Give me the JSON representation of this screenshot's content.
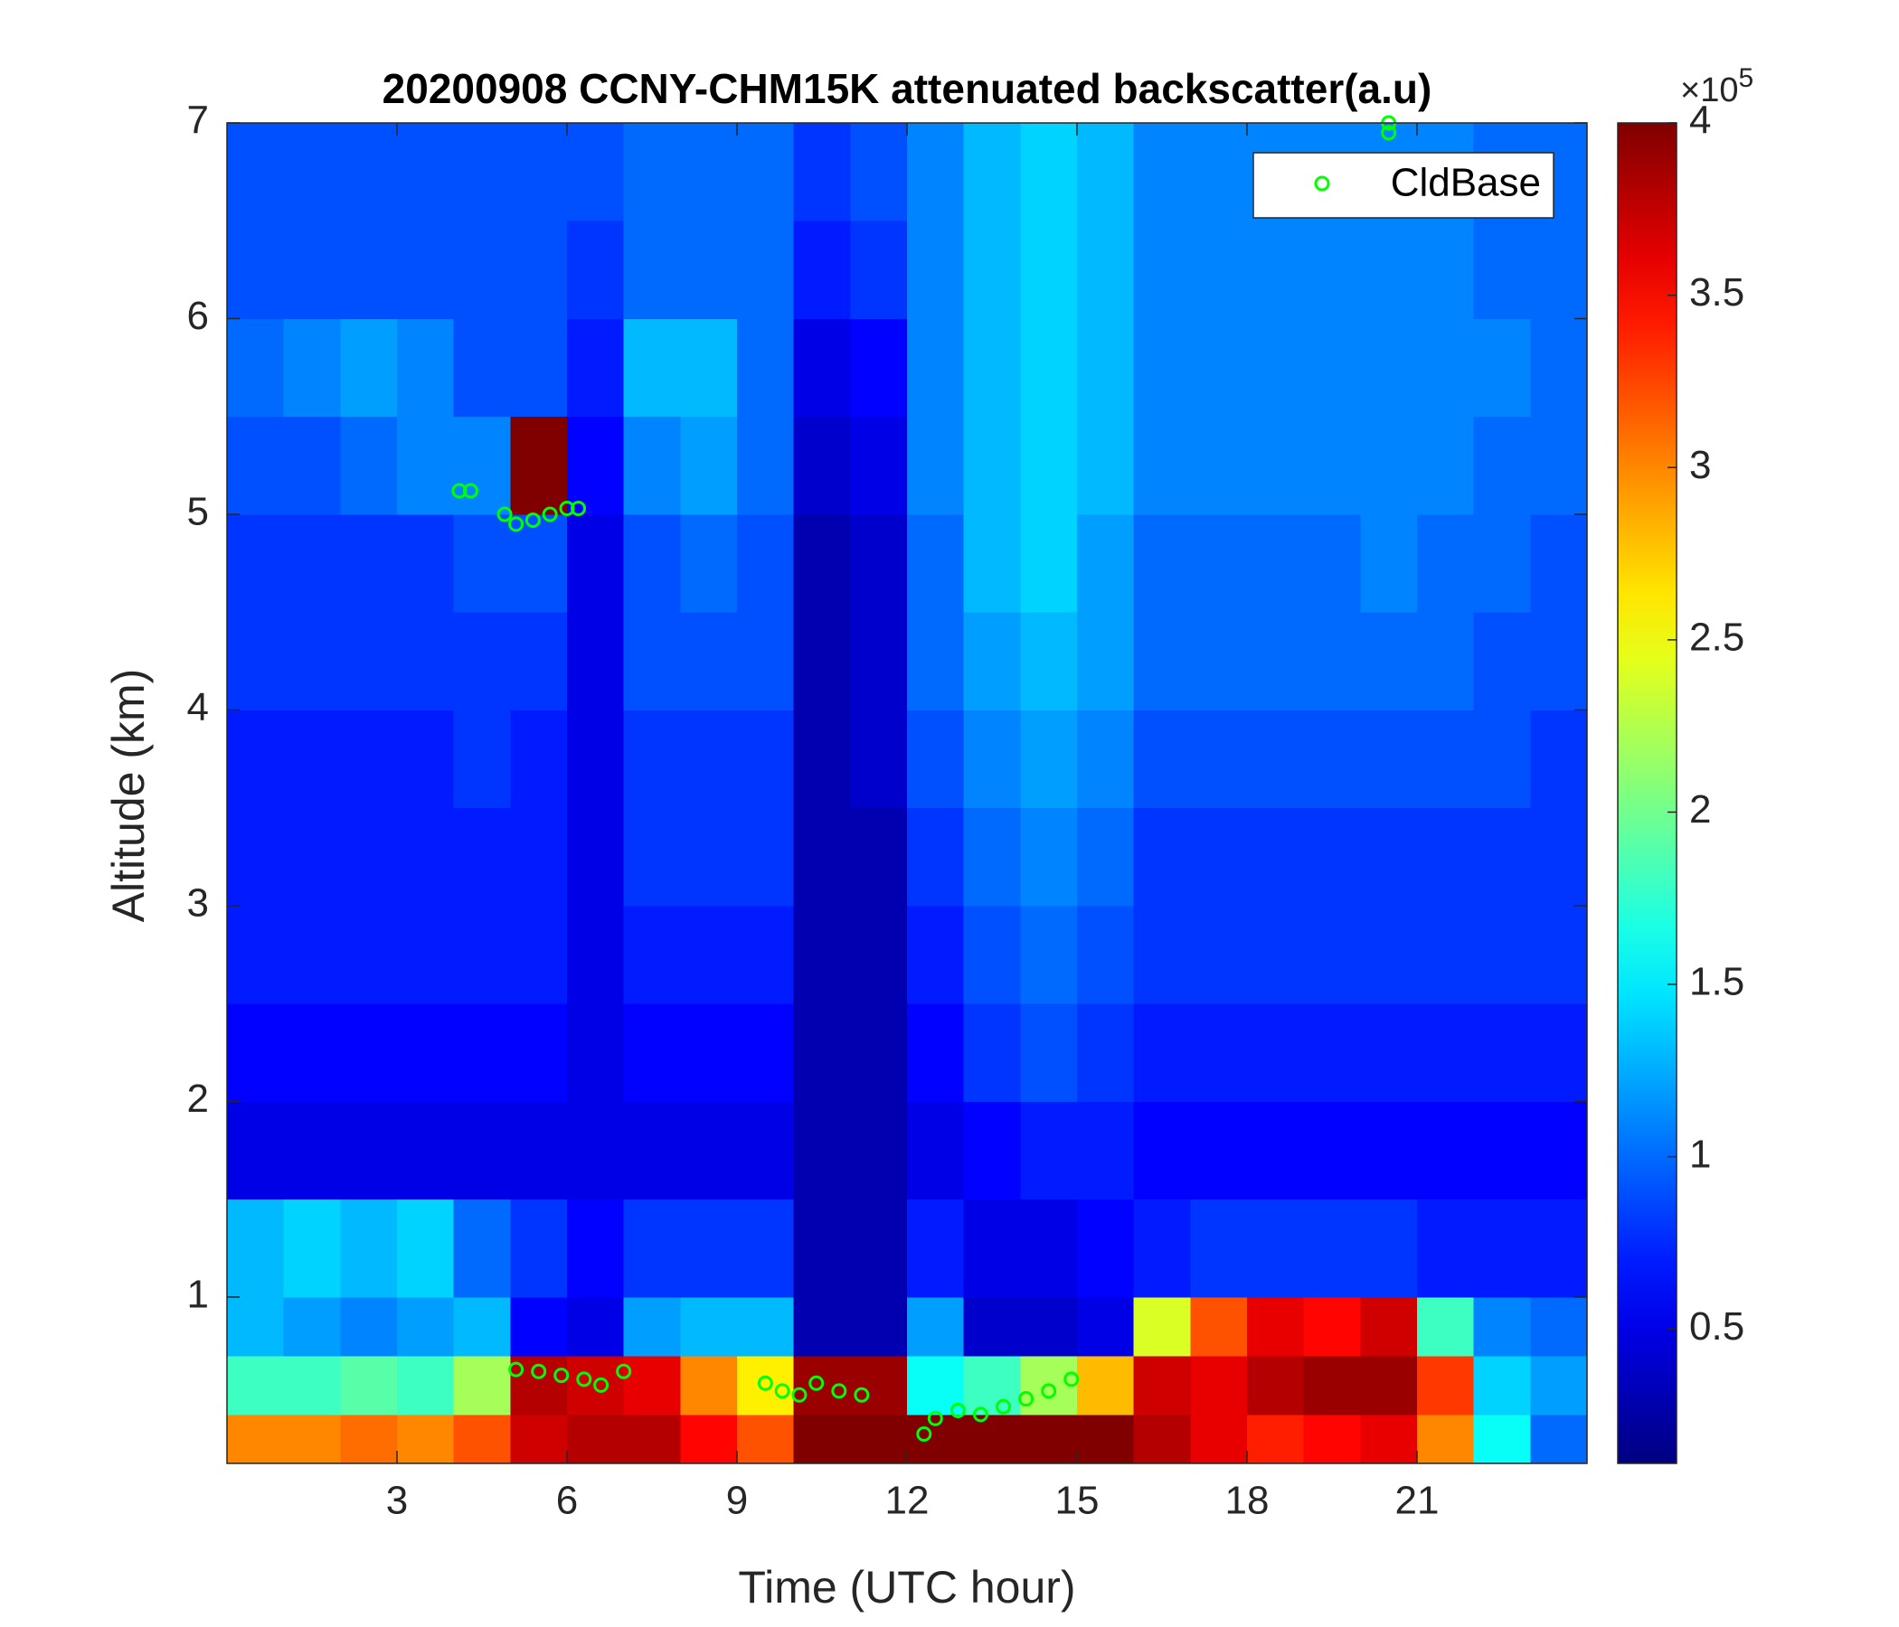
{
  "chart_data": {
    "type": "heatmap",
    "title": "20200908 CCNY-CHM15K attenuated backscatter(a.u)",
    "xlabel": "Time (UTC hour)",
    "ylabel": "Altitude (km)",
    "xlim": [
      0,
      24
    ],
    "ylim": [
      0.15,
      7
    ],
    "xticks": [
      3,
      6,
      9,
      12,
      15,
      18,
      21
    ],
    "yticks": [
      1,
      2,
      3,
      4,
      5,
      6,
      7
    ],
    "colormap": "jet",
    "clim": [
      0.11,
      4
    ],
    "cticks": [
      0.5,
      1,
      1.5,
      2,
      2.5,
      3,
      3.5,
      4
    ],
    "colorbar_multiplier": {
      "base": "×10",
      "exponent": "5"
    },
    "x_bins": [
      0,
      1,
      2,
      3,
      4,
      5,
      6,
      7,
      8,
      9,
      10,
      11,
      12,
      13,
      14,
      15,
      16,
      17,
      18,
      19,
      20,
      21,
      22,
      23,
      24
    ],
    "y_bins": [
      0.15,
      0.4,
      0.7,
      1.0,
      1.5,
      2,
      2.5,
      3,
      3.5,
      4,
      4.5,
      5,
      5.5,
      6,
      6.5,
      7
    ],
    "z": [
      [
        3.0,
        3.0,
        3.1,
        3.0,
        3.2,
        3.7,
        3.8,
        3.8,
        3.5,
        3.2,
        4,
        4,
        4,
        4,
        4,
        4,
        3.8,
        3.6,
        3.4,
        3.5,
        3.6,
        3.0,
        1.6,
        1.0
      ],
      [
        1.8,
        1.8,
        1.9,
        1.8,
        2.2,
        3.8,
        3.7,
        3.6,
        3.0,
        2.6,
        3.9,
        3.9,
        1.6,
        1.8,
        2.2,
        2.8,
        3.7,
        3.6,
        3.8,
        3.9,
        3.9,
        3.3,
        1.4,
        1.2
      ],
      [
        1.3,
        1.2,
        1.1,
        1.2,
        1.3,
        0.6,
        0.5,
        1.2,
        1.3,
        1.3,
        0.3,
        0.3,
        1.2,
        0.4,
        0.4,
        0.5,
        2.4,
        3.2,
        3.6,
        3.5,
        3.7,
        1.8,
        1.1,
        1.0
      ],
      [
        1.3,
        1.4,
        1.3,
        1.4,
        1.0,
        0.8,
        0.6,
        0.8,
        0.8,
        0.8,
        0.3,
        0.3,
        0.7,
        0.5,
        0.5,
        0.6,
        0.7,
        0.8,
        0.8,
        0.8,
        0.8,
        0.7,
        0.7,
        0.7
      ],
      [
        0.5,
        0.5,
        0.5,
        0.5,
        0.5,
        0.5,
        0.5,
        0.5,
        0.5,
        0.5,
        0.3,
        0.3,
        0.5,
        0.6,
        0.7,
        0.7,
        0.6,
        0.6,
        0.6,
        0.6,
        0.6,
        0.6,
        0.6,
        0.6
      ],
      [
        0.6,
        0.6,
        0.6,
        0.6,
        0.6,
        0.6,
        0.5,
        0.6,
        0.6,
        0.6,
        0.3,
        0.3,
        0.6,
        0.8,
        0.9,
        0.8,
        0.7,
        0.7,
        0.7,
        0.7,
        0.7,
        0.7,
        0.7,
        0.7
      ],
      [
        0.7,
        0.7,
        0.7,
        0.7,
        0.7,
        0.7,
        0.5,
        0.7,
        0.7,
        0.7,
        0.3,
        0.3,
        0.7,
        0.9,
        1.0,
        0.9,
        0.8,
        0.8,
        0.8,
        0.8,
        0.8,
        0.8,
        0.8,
        0.8
      ],
      [
        0.7,
        0.7,
        0.7,
        0.7,
        0.7,
        0.7,
        0.5,
        0.8,
        0.8,
        0.8,
        0.3,
        0.3,
        0.8,
        1.0,
        1.1,
        1.0,
        0.8,
        0.8,
        0.8,
        0.8,
        0.8,
        0.8,
        0.8,
        0.8
      ],
      [
        0.7,
        0.7,
        0.7,
        0.7,
        0.8,
        0.7,
        0.5,
        0.8,
        0.8,
        0.8,
        0.3,
        0.4,
        0.9,
        1.1,
        1.2,
        1.1,
        0.9,
        0.9,
        0.9,
        0.9,
        0.9,
        0.9,
        0.9,
        0.8
      ],
      [
        0.8,
        0.8,
        0.8,
        0.8,
        0.8,
        0.8,
        0.5,
        0.9,
        0.9,
        0.9,
        0.3,
        0.4,
        1.0,
        1.2,
        1.3,
        1.2,
        1.0,
        1.0,
        1.0,
        1.0,
        1.0,
        1.0,
        0.9,
        0.9
      ],
      [
        0.8,
        0.8,
        0.8,
        0.8,
        0.9,
        0.9,
        0.5,
        0.9,
        1.0,
        0.9,
        0.3,
        0.4,
        1.0,
        1.3,
        1.4,
        1.2,
        1.0,
        1.0,
        1.0,
        1.0,
        1.1,
        1.0,
        1.0,
        0.9
      ],
      [
        0.9,
        0.9,
        1.0,
        1.1,
        1.1,
        4,
        0.6,
        1.1,
        1.2,
        1.0,
        0.4,
        0.5,
        1.1,
        1.3,
        1.4,
        1.3,
        1.1,
        1.1,
        1.1,
        1.1,
        1.1,
        1.1,
        1.0,
        1.0
      ],
      [
        1.0,
        1.1,
        1.2,
        1.1,
        0.9,
        0.9,
        0.7,
        1.3,
        1.3,
        1.0,
        0.5,
        0.6,
        1.1,
        1.3,
        1.4,
        1.3,
        1.1,
        1.1,
        1.1,
        1.1,
        1.1,
        1.1,
        1.1,
        1.0
      ],
      [
        0.9,
        0.9,
        0.9,
        0.9,
        0.9,
        0.9,
        0.8,
        1.0,
        1.0,
        1.0,
        0.7,
        0.8,
        1.1,
        1.3,
        1.4,
        1.3,
        1.1,
        1.1,
        1.1,
        1.1,
        1.1,
        1.1,
        1.0,
        1.0
      ],
      [
        0.9,
        0.9,
        0.9,
        0.9,
        0.9,
        0.9,
        0.9,
        1.0,
        1.0,
        1.0,
        0.8,
        0.9,
        1.1,
        1.3,
        1.4,
        1.3,
        1.1,
        1.1,
        1.1,
        1.1,
        1.1,
        1.1,
        1.0,
        1.0
      ]
    ],
    "series": [
      {
        "name": "CldBase",
        "color": "#00ff00",
        "x": [
          4.1,
          4.3,
          4.9,
          5.1,
          5.4,
          5.7,
          6.0,
          6.2,
          5.1,
          5.5,
          5.9,
          6.3,
          6.6,
          7.0,
          9.5,
          9.8,
          10.1,
          10.4,
          10.8,
          11.2,
          12.3,
          12.5,
          12.9,
          13.3,
          13.7,
          14.1,
          14.5,
          14.9,
          20.5,
          20.5
        ],
        "y": [
          5.12,
          5.12,
          5.0,
          4.95,
          4.97,
          5.0,
          5.03,
          5.03,
          0.63,
          0.62,
          0.6,
          0.58,
          0.55,
          0.62,
          0.56,
          0.52,
          0.5,
          0.56,
          0.52,
          0.5,
          0.3,
          0.38,
          0.42,
          0.4,
          0.44,
          0.48,
          0.52,
          0.58,
          6.95,
          7.0
        ]
      }
    ],
    "legend_location": "northeast"
  }
}
